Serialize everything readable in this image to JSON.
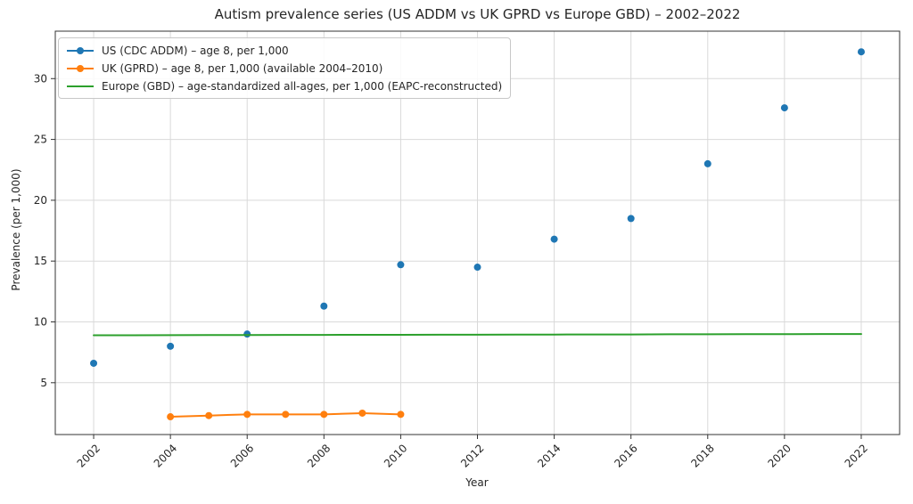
{
  "chart_data": {
    "type": "line",
    "title": "Autism prevalence series (US ADDM vs UK GPRD vs Europe GBD) – 2002–2022",
    "xlabel": "Year",
    "ylabel": "Prevalence (per 1,000)",
    "xlim": [
      2001,
      2023
    ],
    "ylim": [
      0.74,
      33.9
    ],
    "xticks": [
      2002,
      2004,
      2006,
      2008,
      2010,
      2012,
      2014,
      2016,
      2018,
      2020,
      2022
    ],
    "yticks": [
      5,
      10,
      15,
      20,
      25,
      30
    ],
    "x_tick_rotation": 45,
    "grid": true,
    "legend_position": "upper-left",
    "background_color": "#ffffff",
    "grid_color": "#d9d9d9",
    "spine_color": "#333333",
    "text_color": "#262626",
    "series": [
      {
        "name": "us-addm",
        "label": "US (CDC ADDM) – age 8, per 1,000",
        "color": "#1f77b4",
        "marker": "circle",
        "line_in_plot": false,
        "legend_sample": "line-marker",
        "x": [
          2002,
          2004,
          2006,
          2008,
          2010,
          2012,
          2014,
          2016,
          2018,
          2020,
          2022
        ],
        "values": [
          6.6,
          8.0,
          9.0,
          11.3,
          14.7,
          14.5,
          16.8,
          18.5,
          23.0,
          27.6,
          32.2
        ]
      },
      {
        "name": "uk-gprd",
        "label": "UK (GPRD) – age 8, per 1,000 (available 2004–2010)",
        "color": "#ff7f0e",
        "marker": "circle",
        "line_in_plot": true,
        "legend_sample": "line-marker",
        "x": [
          2004,
          2005,
          2006,
          2007,
          2008,
          2009,
          2010
        ],
        "values": [
          2.2,
          2.3,
          2.4,
          2.4,
          2.4,
          2.5,
          2.4
        ]
      },
      {
        "name": "europe-gbd",
        "label": "Europe (GBD) – age-standardized all-ages, per 1,000 (EAPC-reconstructed)",
        "color": "#2ca02c",
        "marker": "none",
        "line_in_plot": true,
        "legend_sample": "line",
        "x": [
          2002,
          2003,
          2004,
          2005,
          2006,
          2007,
          2008,
          2009,
          2010,
          2011,
          2012,
          2013,
          2014,
          2015,
          2016,
          2017,
          2018,
          2019,
          2020,
          2021,
          2022
        ],
        "values": [
          8.9,
          8.9,
          8.91,
          8.92,
          8.92,
          8.93,
          8.93,
          8.94,
          8.94,
          8.95,
          8.95,
          8.96,
          8.96,
          8.97,
          8.97,
          8.98,
          8.98,
          8.99,
          8.99,
          9.0,
          9.0
        ]
      }
    ]
  }
}
